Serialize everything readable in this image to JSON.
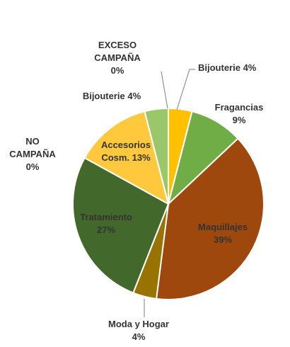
{
  "chart_data": {
    "type": "pie",
    "title": "",
    "start_angle_deg": 0,
    "direction": "clockwise",
    "slices": [
      {
        "name": "Bijouterie",
        "percent": 4,
        "value": 4,
        "label_lines": [
          "Bijouterie 4%"
        ],
        "color": "#FFC000"
      },
      {
        "name": "Fragancias",
        "percent": 9,
        "value": 9,
        "label_lines": [
          "Fragancias",
          "9%"
        ],
        "color": "#70AD47"
      },
      {
        "name": "Maquillajes",
        "percent": 39,
        "value": 39,
        "label_lines": [
          "Maquillajes",
          "39%"
        ],
        "color": "#9E480E"
      },
      {
        "name": "Moda y Hogar",
        "percent": 4,
        "value": 4,
        "label_lines": [
          "Moda y Hogar",
          "4%"
        ],
        "color": "#997300"
      },
      {
        "name": "Tratamiento",
        "percent": 27,
        "value": 27,
        "label_lines": [
          "Tratamiento",
          "27%"
        ],
        "color": "#43682B"
      },
      {
        "name": "NO CAMPAÑA",
        "percent": 0,
        "value": 0,
        "label_lines": [
          "NO",
          "CAMPAÑA",
          "0%"
        ],
        "color": "#264478"
      },
      {
        "name": "Accesorios Cosm.",
        "percent": 13,
        "value": 13,
        "label_lines": [
          "Accesorios",
          "Cosm. 13%"
        ],
        "color": "#FFC83D"
      },
      {
        "name": "Bijouterie",
        "percent": 4,
        "value": 4,
        "label_lines": [
          "Bijouterie 4%"
        ],
        "color": "#9BC76B"
      },
      {
        "name": "EXCESO CAMPAÑA",
        "percent": 0,
        "value": 0,
        "label_lines": [
          "EXCESO",
          "CAMPAÑA",
          "0%"
        ],
        "color": "#7F6000"
      }
    ]
  }
}
